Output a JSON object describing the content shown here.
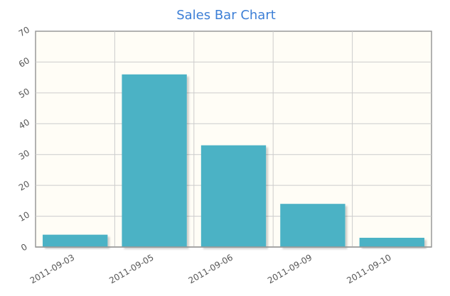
{
  "chart_data": {
    "type": "bar",
    "title": "Sales Bar Chart",
    "xlabel": "",
    "ylabel": "",
    "categories": [
      "2011-09-03",
      "2011-09-05",
      "2011-09-06",
      "2011-09-09",
      "2011-09-10"
    ],
    "values": [
      4,
      56,
      33,
      14,
      3
    ],
    "ylim": [
      0,
      70
    ],
    "yticks": [
      0,
      10,
      20,
      30,
      40,
      50,
      60,
      70
    ],
    "grid": true,
    "legend": "none",
    "colors": {
      "bar": "#4bb2c5",
      "title": "#3d7fd6",
      "plot_background": "#fffdf6",
      "grid": "#cccccc",
      "axis": "#999999"
    }
  }
}
